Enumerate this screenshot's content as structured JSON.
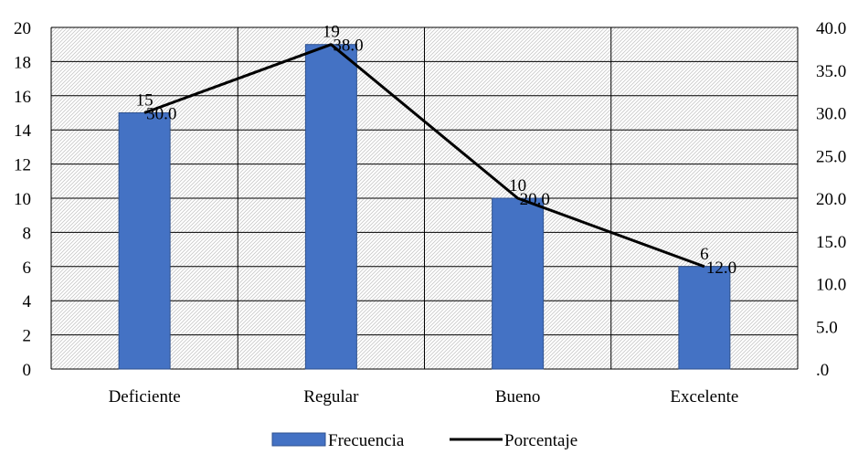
{
  "chart_data": {
    "type": "bar",
    "title": "",
    "xlabel": "",
    "ylabel": "",
    "categories": [
      "Deficiente",
      "Regular",
      "Bueno",
      "Excelente"
    ],
    "series": [
      {
        "name": "Frecuencia",
        "type": "bar",
        "axis": "left",
        "values": [
          15,
          19,
          10,
          6
        ],
        "labels": [
          "15",
          "19",
          "10",
          "6"
        ]
      },
      {
        "name": "Porcentaje",
        "type": "line",
        "axis": "right",
        "values": [
          30.0,
          38.0,
          20.0,
          12.0
        ],
        "labels": [
          "30.0",
          "38.0",
          "20.0",
          "12.0"
        ]
      }
    ],
    "ylim": [
      0,
      20
    ],
    "y_ticks": [
      "0",
      "2",
      "4",
      "6",
      "8",
      "10",
      "12",
      "14",
      "16",
      "18",
      "20"
    ],
    "y2lim": [
      0,
      40
    ],
    "y2_ticks": [
      ".0",
      "5.0",
      "10.0",
      "15.0",
      "20.0",
      "25.0",
      "30.0",
      "35.0",
      "40.0"
    ],
    "grid": true,
    "background": "hatched",
    "legend_position": "bottom",
    "colors": {
      "bar": "#4472C4",
      "bar_border": "#2F528F",
      "line": "#000000",
      "grid": "#000000",
      "hatch": "#c8c8c8"
    }
  }
}
